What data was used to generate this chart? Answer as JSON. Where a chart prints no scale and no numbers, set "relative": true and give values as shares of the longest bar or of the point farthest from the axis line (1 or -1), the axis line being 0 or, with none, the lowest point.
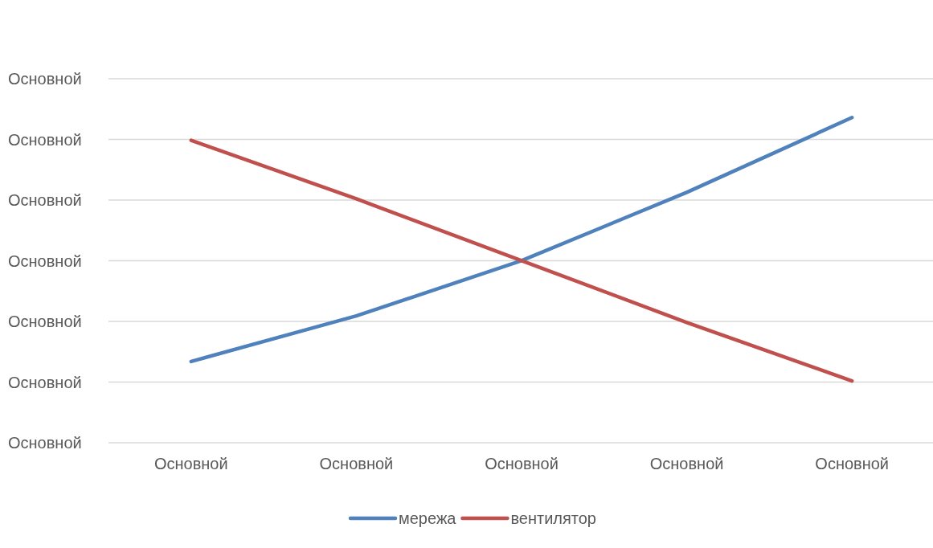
{
  "chart_data": {
    "type": "line",
    "categories": [
      "Основной",
      "Основной",
      "Основной",
      "Основной",
      "Основной"
    ],
    "series": [
      {
        "name": "мережа",
        "color": "#4f81bd",
        "values": [
          0.25,
          0.39,
          0.56,
          0.77,
          1
        ]
      },
      {
        "name": "вентилятор",
        "color": "#c0504d",
        "values": [
          0.93,
          0.75,
          0.56,
          0.37,
          0.19
        ]
      }
    ],
    "relative": true,
    "annotations": [
      "Основной",
      "Основной",
      "Основной",
      "Основной",
      "Основной",
      "Основной",
      "Основной"
    ],
    "grid": "y",
    "legend": "bottom",
    "marker": "none",
    "line_style": "solid"
  }
}
